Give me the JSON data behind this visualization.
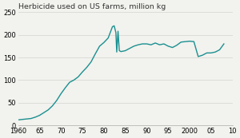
{
  "title": "Herbicide used on US farms, million kg",
  "line_color": "#1a9090",
  "background_color": "#f2f2ee",
  "xlim": [
    1960,
    2010
  ],
  "ylim": [
    0,
    250
  ],
  "yticks": [
    0,
    50,
    100,
    150,
    200,
    250
  ],
  "xtick_labels": [
    "1960",
    "65",
    "70",
    "75",
    "80",
    "85",
    "90",
    "95",
    "2000",
    "05",
    "10"
  ],
  "xtick_positions": [
    1960,
    1965,
    1970,
    1975,
    1980,
    1985,
    1990,
    1995,
    2000,
    2005,
    2010
  ],
  "years": [
    1960,
    1961,
    1962,
    1963,
    1964,
    1965,
    1966,
    1967,
    1968,
    1969,
    1970,
    1971,
    1972,
    1973,
    1974,
    1975,
    1976,
    1977,
    1978,
    1979,
    1980,
    1981,
    1982,
    1982.4,
    1982.8,
    1983,
    1983.3,
    1983.6,
    1984,
    1985,
    1986,
    1987,
    1988,
    1989,
    1990,
    1991,
    1992,
    1993,
    1994,
    1995,
    1996,
    1997,
    1998,
    1999,
    2000,
    2001,
    2002,
    2003,
    2004,
    2005,
    2006,
    2007,
    2008
  ],
  "values": [
    12,
    13,
    14,
    15,
    18,
    22,
    28,
    34,
    43,
    55,
    70,
    83,
    95,
    100,
    107,
    118,
    128,
    140,
    158,
    175,
    183,
    193,
    218,
    220,
    205,
    162,
    208,
    165,
    163,
    165,
    170,
    175,
    178,
    180,
    180,
    178,
    182,
    178,
    180,
    175,
    172,
    177,
    184,
    185,
    186,
    185,
    152,
    155,
    160,
    160,
    162,
    167,
    180
  ]
}
